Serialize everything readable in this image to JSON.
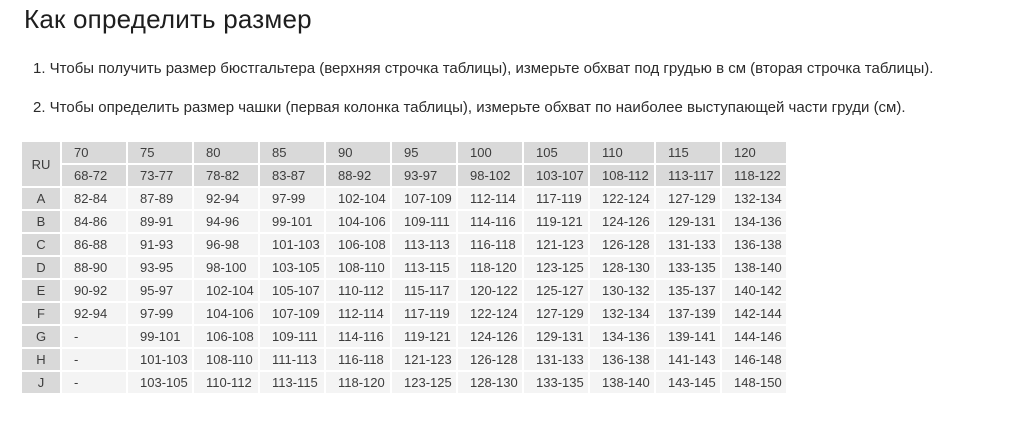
{
  "page": {
    "title": "Как определить размер",
    "instructions": [
      "1. Чтобы получить размер бюстгальтера (верхняя строчка таблицы), измерьте обхват под грудью в см (вторая строчка таблицы).",
      "2. Чтобы определить размер чашки (первая колонка таблицы), измерьте обхват по наиболее выступающей части груди (см)."
    ]
  },
  "table": {
    "corner_label": "RU",
    "band_sizes": [
      "70",
      "75",
      "80",
      "85",
      "90",
      "95",
      "100",
      "105",
      "110",
      "115",
      "120"
    ],
    "underbust_ranges": [
      "68-72",
      "73-77",
      "78-82",
      "83-87",
      "88-92",
      "93-97",
      "98-102",
      "103-107",
      "108-112",
      "113-117",
      "118-122"
    ],
    "cup_rows": [
      {
        "cup": "A",
        "values": [
          "82-84",
          "87-89",
          "92-94",
          "97-99",
          "102-104",
          "107-109",
          "112-114",
          "117-119",
          "122-124",
          "127-129",
          "132-134"
        ]
      },
      {
        "cup": "B",
        "values": [
          "84-86",
          "89-91",
          "94-96",
          "99-101",
          "104-106",
          "109-111",
          "114-116",
          "119-121",
          "124-126",
          "129-131",
          "134-136"
        ]
      },
      {
        "cup": "C",
        "values": [
          "86-88",
          "91-93",
          "96-98",
          "101-103",
          "106-108",
          "113-113",
          "116-118",
          "121-123",
          "126-128",
          "131-133",
          "136-138"
        ]
      },
      {
        "cup": "D",
        "values": [
          "88-90",
          "93-95",
          "98-100",
          "103-105",
          "108-110",
          "113-115",
          "118-120",
          "123-125",
          "128-130",
          "133-135",
          "138-140"
        ]
      },
      {
        "cup": "E",
        "values": [
          "90-92",
          "95-97",
          "102-104",
          "105-107",
          "110-112",
          "115-117",
          "120-122",
          "125-127",
          "130-132",
          "135-137",
          "140-142"
        ]
      },
      {
        "cup": "F",
        "values": [
          "92-94",
          "97-99",
          "104-106",
          "107-109",
          "112-114",
          "117-119",
          "122-124",
          "127-129",
          "132-134",
          "137-139",
          "142-144"
        ]
      },
      {
        "cup": "G",
        "values": [
          "-",
          "99-101",
          "106-108",
          "109-111",
          "114-116",
          "119-121",
          "124-126",
          "129-131",
          "134-136",
          "139-141",
          "144-146"
        ]
      },
      {
        "cup": "H",
        "values": [
          "-",
          "101-103",
          "108-110",
          "111-113",
          "116-118",
          "121-123",
          "126-128",
          "131-133",
          "136-138",
          "141-143",
          "146-148"
        ]
      },
      {
        "cup": "J",
        "values": [
          "-",
          "103-105",
          "110-112",
          "113-115",
          "118-120",
          "123-125",
          "128-130",
          "133-135",
          "138-140",
          "143-145",
          "148-150"
        ]
      }
    ]
  },
  "colors": {
    "header_bg": "#d9d9d9",
    "cell_bg": "#f4f4f4",
    "text": "#3d3d3d",
    "title": "#1e1e1e"
  }
}
